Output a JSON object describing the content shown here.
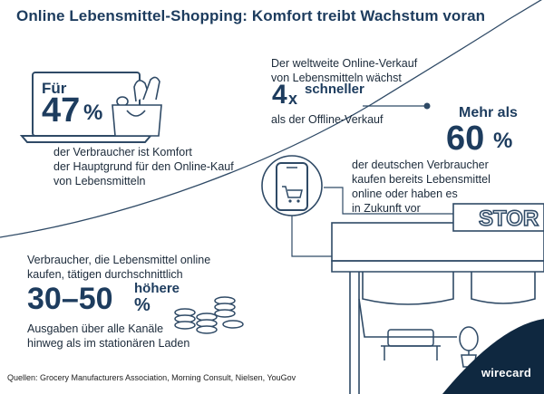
{
  "title": "Online Lebensmittel-Shopping: Komfort treibt Wachstum voran",
  "stat1": {
    "prefix": "Für",
    "number": "47",
    "unit": "%",
    "lines": [
      "der Verbraucher ist Komfort",
      "der Hauptgrund für den Online-Kauf",
      "von Lebensmitteln"
    ]
  },
  "stat2": {
    "lines_top": [
      "Der weltweite Online-Verkauf",
      "von Lebensmitteln wächst"
    ],
    "number": "4",
    "unit": "x",
    "word": "schneller",
    "line_bottom": "als der Offline-Verkauf"
  },
  "stat3": {
    "prefix": "Mehr als",
    "number": "60",
    "unit": "%",
    "lines": [
      "der deutschen Verbraucher",
      "kaufen bereits Lebensmittel",
      "online oder haben es",
      "in Zukunft vor"
    ]
  },
  "stat4": {
    "lines_top": [
      "Verbraucher, die Lebensmittel online",
      "kaufen, tätigen durchschnittlich"
    ],
    "number": "30–50",
    "unit": "%",
    "word": "höhere",
    "lines_bottom": [
      "Ausgaben über alle Kanäle",
      "hinweg als im stationären Laden"
    ]
  },
  "store_sign": "STOR",
  "sources": "Quellen: Grocery Manufacturers Association, Morning Consult, Nielsen, YouGov",
  "brand": "wirecard",
  "colors": {
    "navy": "#1d3c5e",
    "line": "#2f4a66",
    "corner": "#0f2840",
    "accent": "#f2f6f9"
  }
}
